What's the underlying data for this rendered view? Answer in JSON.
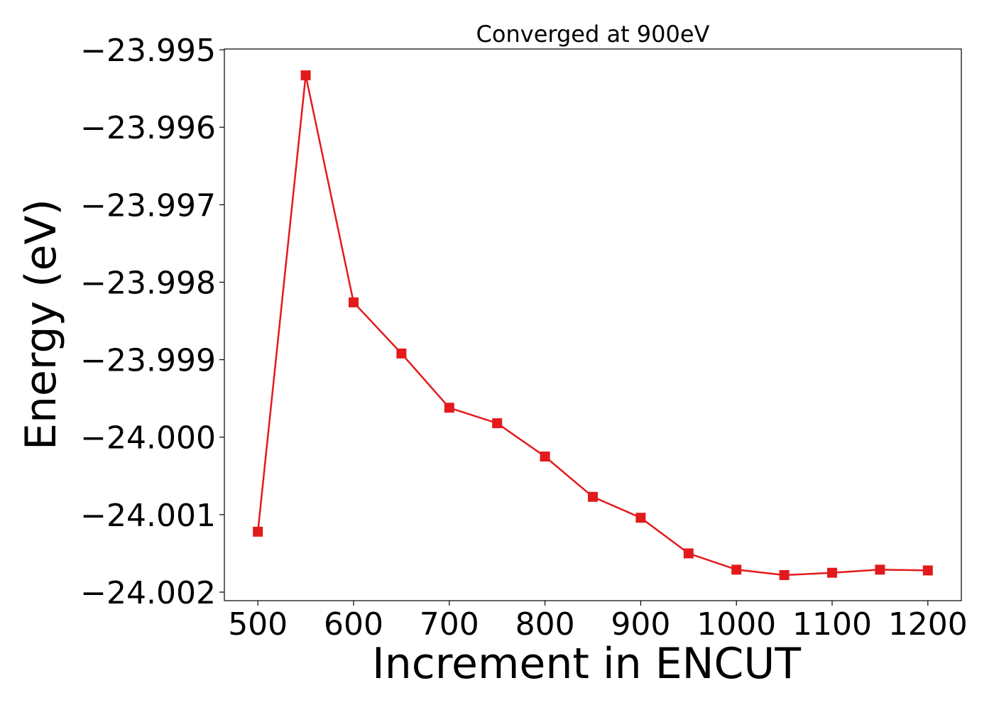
{
  "chart_data": {
    "type": "line",
    "title": "Converged at 900eV",
    "xlabel": "Increment in ENCUT",
    "ylabel": "Energy (eV)",
    "xlim": [
      465,
      1235
    ],
    "ylim": [
      -24.00211,
      -23.99499
    ],
    "x_ticks": [
      500,
      600,
      700,
      800,
      900,
      1000,
      1100,
      1200
    ],
    "x_tick_labels": [
      "500",
      "600",
      "700",
      "800",
      "900",
      "1000",
      "1100",
      "1200"
    ],
    "y_ticks": [
      -23.995,
      -23.996,
      -23.997,
      -23.998,
      -23.999,
      -24.0,
      -24.001,
      -24.002
    ],
    "y_tick_labels": [
      "−23.995",
      "−23.996",
      "−23.997",
      "−23.998",
      "−23.999",
      "−24.000",
      "−24.001",
      "−24.002"
    ],
    "grid": false,
    "series": [
      {
        "color": "#e31a1c",
        "marker": "square",
        "x": [
          500,
          550,
          600,
          650,
          700,
          750,
          800,
          850,
          900,
          950,
          1000,
          1050,
          1100,
          1150,
          1200
        ],
        "values": [
          -24.00122,
          -23.99533,
          -23.99826,
          -23.99892,
          -23.99962,
          -23.99982,
          -24.00025,
          -24.00077,
          -24.00104,
          -24.0015,
          -24.00171,
          -24.00178,
          -24.00175,
          -24.00171,
          -24.00172
        ]
      }
    ]
  }
}
